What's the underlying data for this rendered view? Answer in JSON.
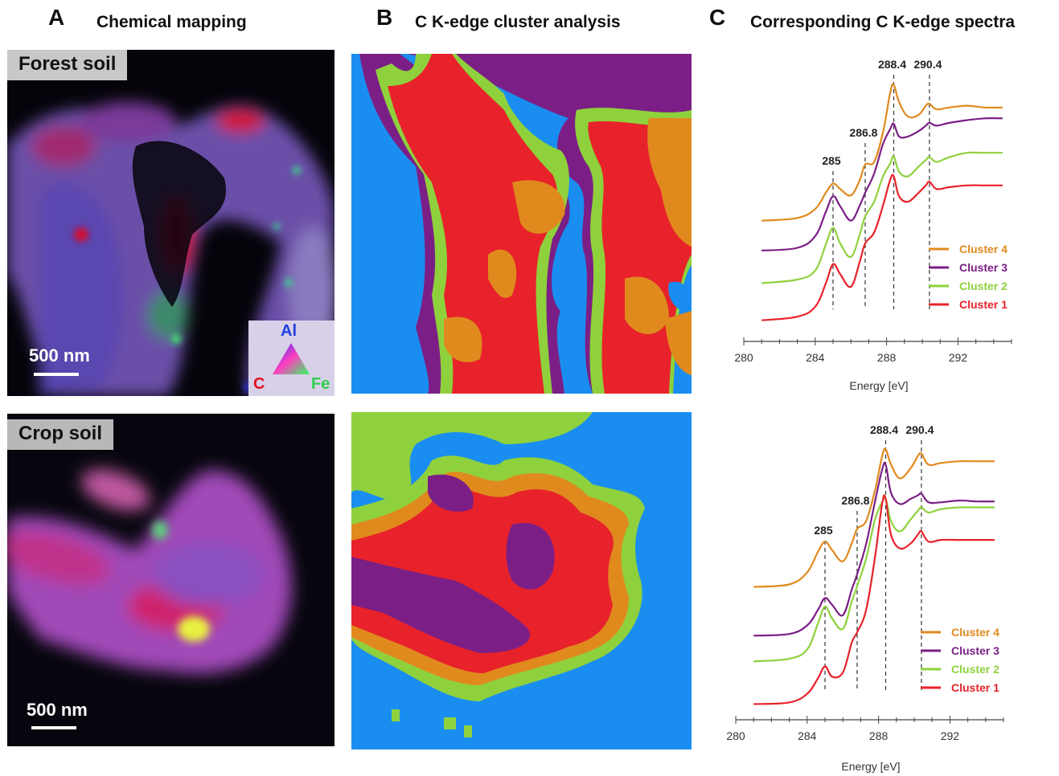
{
  "panels": {
    "a": {
      "letter": "A",
      "title": "Chemical mapping"
    },
    "b": {
      "letter": "B",
      "title": "C K-edge cluster analysis"
    },
    "c": {
      "letter": "C",
      "title": "Corresponding C K-edge spectra"
    }
  },
  "maps": {
    "forest_label": "Forest soil",
    "crop_label": "Crop soil",
    "scale_text": "500 nm",
    "ternary": {
      "top": "Al",
      "left": "C",
      "right": "Fe"
    }
  },
  "colors": {
    "cluster4": "#e08a1e",
    "cluster3": "#7b1f86",
    "cluster2": "#8fd13c",
    "cluster1": "#e8222a",
    "blue_background": "#1a8ef0"
  },
  "chart_data": [
    {
      "type": "line",
      "name": "Forest soil",
      "xlabel": "Energy [eV]",
      "xlim": [
        280,
        295
      ],
      "xticks": [
        280,
        284,
        288,
        292
      ],
      "peak_labels": [
        "285",
        "286.8",
        "288.4",
        "290.4"
      ],
      "peaks": [
        285,
        286.8,
        288.4,
        290.4
      ],
      "series": [
        {
          "name": "Cluster 4",
          "color": "#e08a1e",
          "x": [
            281,
            283,
            284,
            284.6,
            285,
            285.4,
            286,
            286.5,
            286.8,
            287.3,
            287.8,
            288.2,
            288.4,
            288.7,
            289.2,
            289.8,
            290.2,
            290.4,
            290.8,
            291.5,
            292.5,
            293.5,
            294.5
          ],
          "y": [
            0.45,
            0.48,
            0.58,
            0.76,
            0.86,
            0.8,
            0.73,
            0.9,
            1.07,
            1.1,
            1.43,
            1.86,
            1.95,
            1.76,
            1.6,
            1.62,
            1.72,
            1.74,
            1.68,
            1.7,
            1.72,
            1.7,
            1.7
          ]
        },
        {
          "name": "Cluster 3",
          "color": "#7b1f86",
          "x": [
            281,
            283,
            284,
            284.6,
            285,
            285.4,
            286,
            286.5,
            286.8,
            287.3,
            287.8,
            288.2,
            288.4,
            288.7,
            289.2,
            289.8,
            290.2,
            290.4,
            290.8,
            291.5,
            292.5,
            293.5,
            294.5
          ],
          "y": [
            0.12,
            0.15,
            0.28,
            0.55,
            0.72,
            0.61,
            0.45,
            0.62,
            0.76,
            0.97,
            1.3,
            1.46,
            1.52,
            1.38,
            1.38,
            1.44,
            1.5,
            1.53,
            1.5,
            1.53,
            1.56,
            1.58,
            1.58
          ]
        },
        {
          "name": "Cluster 2",
          "color": "#8fd13c",
          "x": [
            281,
            283,
            284,
            284.6,
            285,
            285.4,
            286,
            286.5,
            286.8,
            287.3,
            287.8,
            288.2,
            288.4,
            288.7,
            289.2,
            289.8,
            290.2,
            290.4,
            290.8,
            291.5,
            292.5,
            293.5,
            294.5
          ],
          "y": [
            -0.24,
            -0.2,
            -0.1,
            0.19,
            0.37,
            0.2,
            0.05,
            0.3,
            0.5,
            0.66,
            0.94,
            1.08,
            1.16,
            0.99,
            0.94,
            1.05,
            1.12,
            1.15,
            1.1,
            1.15,
            1.2,
            1.2,
            1.2
          ]
        },
        {
          "name": "Cluster 1",
          "color": "#e8222a",
          "x": [
            281,
            283,
            284,
            284.6,
            285,
            285.4,
            286,
            286.5,
            286.8,
            287.3,
            287.8,
            288.2,
            288.4,
            288.7,
            289.2,
            289.8,
            290.2,
            290.4,
            290.8,
            291.5,
            292.5,
            293.5,
            294.5
          ],
          "y": [
            -0.65,
            -0.61,
            -0.5,
            -0.24,
            -0.03,
            -0.14,
            -0.28,
            0.0,
            0.2,
            0.32,
            0.62,
            0.9,
            0.94,
            0.72,
            0.66,
            0.76,
            0.84,
            0.88,
            0.8,
            0.82,
            0.84,
            0.84,
            0.84
          ]
        }
      ]
    },
    {
      "type": "line",
      "name": "Crop soil",
      "xlabel": "Energy [eV]",
      "xlim": [
        280,
        295
      ],
      "xticks": [
        280,
        284,
        288,
        292
      ],
      "peak_labels": [
        "285",
        "286.8",
        "288.4",
        "290.4"
      ],
      "peaks": [
        285,
        286.8,
        288.4,
        290.4
      ],
      "series": [
        {
          "name": "Cluster 4",
          "color": "#e08a1e",
          "x": [
            281,
            283,
            284,
            284.6,
            285,
            285.4,
            286,
            286.5,
            286.8,
            287.3,
            287.8,
            288.2,
            288.4,
            288.7,
            289.2,
            289.8,
            290.2,
            290.4,
            290.8,
            291.5,
            292.5,
            293.5,
            294.5
          ],
          "y": [
            0.45,
            0.48,
            0.62,
            0.86,
            0.98,
            0.88,
            0.75,
            0.96,
            1.13,
            1.22,
            1.58,
            1.98,
            2.06,
            1.88,
            1.72,
            1.84,
            1.98,
            2.01,
            1.88,
            1.9,
            1.92,
            1.92,
            1.92
          ]
        },
        {
          "name": "Cluster 3",
          "color": "#7b1f86",
          "x": [
            281,
            283,
            284,
            284.6,
            285,
            285.4,
            286,
            286.5,
            286.8,
            287.3,
            287.8,
            288.2,
            288.4,
            288.7,
            289.2,
            289.8,
            290.2,
            290.4,
            290.8,
            291.5,
            292.5,
            293.5,
            294.5
          ],
          "y": [
            -0.12,
            -0.1,
            0.0,
            0.18,
            0.32,
            0.24,
            0.12,
            0.42,
            0.6,
            0.95,
            1.45,
            1.82,
            1.88,
            1.55,
            1.42,
            1.48,
            1.52,
            1.54,
            1.44,
            1.44,
            1.46,
            1.45,
            1.45
          ]
        },
        {
          "name": "Cluster 2",
          "color": "#8fd13c",
          "x": [
            281,
            283,
            284,
            284.6,
            285,
            285.4,
            286,
            286.5,
            286.8,
            287.3,
            287.8,
            288.2,
            288.4,
            288.7,
            289.2,
            289.8,
            290.2,
            290.4,
            290.8,
            291.5,
            292.5,
            293.5,
            294.5
          ],
          "y": [
            -0.42,
            -0.39,
            -0.28,
            0.02,
            0.22,
            0.08,
            -0.04,
            0.28,
            0.46,
            0.78,
            1.24,
            1.44,
            1.48,
            1.22,
            1.1,
            1.24,
            1.34,
            1.38,
            1.32,
            1.36,
            1.38,
            1.38,
            1.38
          ]
        },
        {
          "name": "Cluster 1",
          "color": "#e8222a",
          "x": [
            281,
            283,
            284,
            284.6,
            285,
            285.4,
            286,
            286.5,
            286.8,
            287.3,
            287.8,
            288.2,
            288.4,
            288.7,
            289.2,
            289.8,
            290.2,
            290.4,
            290.8,
            291.5,
            292.5,
            293.5,
            294.5
          ],
          "y": [
            -0.92,
            -0.9,
            -0.8,
            -0.62,
            -0.48,
            -0.6,
            -0.55,
            -0.2,
            -0.08,
            0.18,
            0.8,
            1.42,
            1.48,
            1.06,
            0.9,
            0.96,
            1.06,
            1.1,
            0.98,
            1.0,
            1.0,
            1.0,
            1.0
          ]
        }
      ]
    }
  ]
}
